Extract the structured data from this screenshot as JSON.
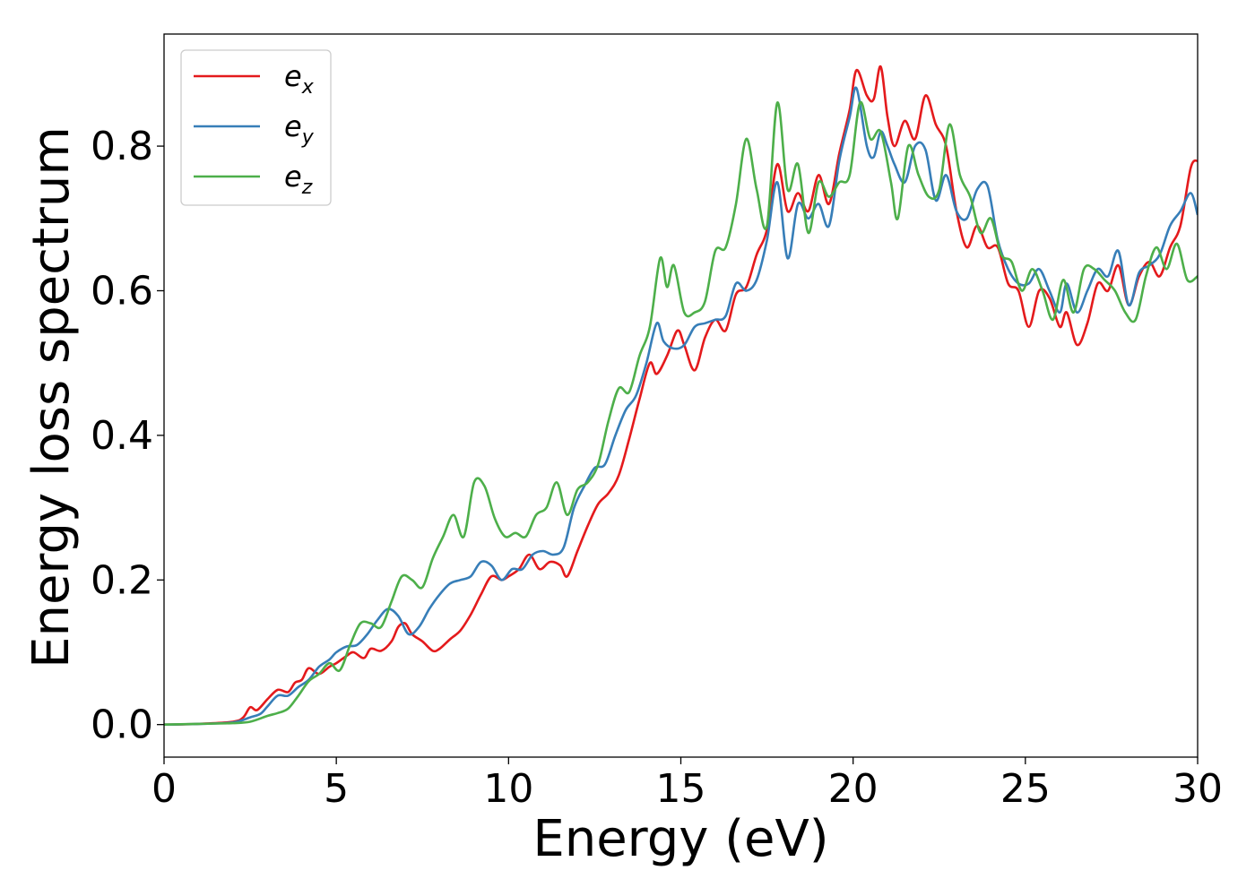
{
  "chart_data": {
    "type": "line",
    "title": "",
    "xlabel": "Energy (eV)",
    "ylabel": "Energy loss spectrum",
    "xlim": [
      0,
      30
    ],
    "ylim": [
      -0.045,
      0.955
    ],
    "xticks": [
      0,
      5,
      10,
      15,
      20,
      25,
      30
    ],
    "yticks": [
      0.0,
      0.2,
      0.4,
      0.6,
      0.8
    ],
    "xtick_labels": [
      "0",
      "5",
      "10",
      "15",
      "20",
      "25",
      "30"
    ],
    "ytick_labels": [
      "0.0",
      "0.2",
      "0.4",
      "0.6",
      "0.8"
    ],
    "grid": false,
    "legend_position": "top-left",
    "series": [
      {
        "name": "e_x",
        "legend_base": "e",
        "legend_sub": "x",
        "color": "#e41a1c",
        "points": [
          [
            0,
            0
          ],
          [
            1,
            0.001
          ],
          [
            2,
            0.004
          ],
          [
            2.3,
            0.01
          ],
          [
            2.5,
            0.024
          ],
          [
            2.7,
            0.02
          ],
          [
            3,
            0.035
          ],
          [
            3.3,
            0.048
          ],
          [
            3.6,
            0.045
          ],
          [
            3.8,
            0.058
          ],
          [
            4,
            0.062
          ],
          [
            4.2,
            0.078
          ],
          [
            4.5,
            0.07
          ],
          [
            4.8,
            0.08
          ],
          [
            5,
            0.085
          ],
          [
            5.3,
            0.095
          ],
          [
            5.5,
            0.1
          ],
          [
            5.8,
            0.092
          ],
          [
            6,
            0.105
          ],
          [
            6.3,
            0.102
          ],
          [
            6.6,
            0.115
          ],
          [
            6.8,
            0.135
          ],
          [
            7,
            0.14
          ],
          [
            7.2,
            0.125
          ],
          [
            7.5,
            0.115
          ],
          [
            7.8,
            0.102
          ],
          [
            8,
            0.105
          ],
          [
            8.3,
            0.118
          ],
          [
            8.6,
            0.13
          ],
          [
            8.9,
            0.152
          ],
          [
            9.2,
            0.18
          ],
          [
            9.5,
            0.205
          ],
          [
            9.8,
            0.2
          ],
          [
            10,
            0.205
          ],
          [
            10.3,
            0.215
          ],
          [
            10.6,
            0.235
          ],
          [
            10.9,
            0.215
          ],
          [
            11.2,
            0.225
          ],
          [
            11.5,
            0.22
          ],
          [
            11.7,
            0.205
          ],
          [
            12,
            0.24
          ],
          [
            12.3,
            0.275
          ],
          [
            12.6,
            0.305
          ],
          [
            12.9,
            0.32
          ],
          [
            13.2,
            0.345
          ],
          [
            13.5,
            0.395
          ],
          [
            13.8,
            0.45
          ],
          [
            14.1,
            0.5
          ],
          [
            14.3,
            0.485
          ],
          [
            14.6,
            0.51
          ],
          [
            14.9,
            0.545
          ],
          [
            15.1,
            0.525
          ],
          [
            15.4,
            0.49
          ],
          [
            15.7,
            0.535
          ],
          [
            16,
            0.56
          ],
          [
            16.3,
            0.545
          ],
          [
            16.6,
            0.595
          ],
          [
            16.9,
            0.605
          ],
          [
            17.2,
            0.65
          ],
          [
            17.5,
            0.685
          ],
          [
            17.8,
            0.775
          ],
          [
            18.1,
            0.71
          ],
          [
            18.4,
            0.735
          ],
          [
            18.7,
            0.71
          ],
          [
            19,
            0.76
          ],
          [
            19.3,
            0.72
          ],
          [
            19.6,
            0.79
          ],
          [
            19.9,
            0.85
          ],
          [
            20.1,
            0.905
          ],
          [
            20.4,
            0.87
          ],
          [
            20.6,
            0.865
          ],
          [
            20.8,
            0.91
          ],
          [
            21,
            0.84
          ],
          [
            21.2,
            0.8
          ],
          [
            21.5,
            0.835
          ],
          [
            21.8,
            0.81
          ],
          [
            22.1,
            0.87
          ],
          [
            22.4,
            0.83
          ],
          [
            22.7,
            0.8
          ],
          [
            23,
            0.71
          ],
          [
            23.3,
            0.66
          ],
          [
            23.6,
            0.69
          ],
          [
            23.9,
            0.66
          ],
          [
            24.2,
            0.66
          ],
          [
            24.5,
            0.61
          ],
          [
            24.8,
            0.6
          ],
          [
            25.1,
            0.55
          ],
          [
            25.4,
            0.6
          ],
          [
            25.7,
            0.59
          ],
          [
            26,
            0.55
          ],
          [
            26.2,
            0.57
          ],
          [
            26.5,
            0.525
          ],
          [
            26.8,
            0.555
          ],
          [
            27.1,
            0.61
          ],
          [
            27.4,
            0.6
          ],
          [
            27.7,
            0.635
          ],
          [
            28,
            0.58
          ],
          [
            28.3,
            0.62
          ],
          [
            28.6,
            0.64
          ],
          [
            28.9,
            0.62
          ],
          [
            29.2,
            0.66
          ],
          [
            29.5,
            0.69
          ],
          [
            29.8,
            0.77
          ],
          [
            30,
            0.78
          ]
        ]
      },
      {
        "name": "e_y",
        "legend_base": "e",
        "legend_sub": "y",
        "color": "#377eb8",
        "points": [
          [
            0,
            0
          ],
          [
            1,
            0.001
          ],
          [
            2,
            0.003
          ],
          [
            2.5,
            0.01
          ],
          [
            2.8,
            0.015
          ],
          [
            3,
            0.025
          ],
          [
            3.3,
            0.04
          ],
          [
            3.6,
            0.04
          ],
          [
            3.9,
            0.052
          ],
          [
            4.2,
            0.062
          ],
          [
            4.5,
            0.08
          ],
          [
            4.8,
            0.09
          ],
          [
            5,
            0.1
          ],
          [
            5.3,
            0.108
          ],
          [
            5.6,
            0.11
          ],
          [
            5.9,
            0.125
          ],
          [
            6.2,
            0.145
          ],
          [
            6.5,
            0.16
          ],
          [
            6.8,
            0.15
          ],
          [
            7.1,
            0.125
          ],
          [
            7.4,
            0.135
          ],
          [
            7.7,
            0.16
          ],
          [
            8,
            0.18
          ],
          [
            8.3,
            0.195
          ],
          [
            8.6,
            0.2
          ],
          [
            8.9,
            0.205
          ],
          [
            9.2,
            0.225
          ],
          [
            9.5,
            0.22
          ],
          [
            9.8,
            0.2
          ],
          [
            10.1,
            0.215
          ],
          [
            10.4,
            0.215
          ],
          [
            10.7,
            0.235
          ],
          [
            11,
            0.24
          ],
          [
            11.3,
            0.235
          ],
          [
            11.6,
            0.245
          ],
          [
            11.9,
            0.3
          ],
          [
            12.2,
            0.33
          ],
          [
            12.5,
            0.355
          ],
          [
            12.8,
            0.36
          ],
          [
            13.1,
            0.4
          ],
          [
            13.4,
            0.435
          ],
          [
            13.7,
            0.455
          ],
          [
            14,
            0.5
          ],
          [
            14.3,
            0.555
          ],
          [
            14.5,
            0.53
          ],
          [
            14.8,
            0.52
          ],
          [
            15.1,
            0.525
          ],
          [
            15.4,
            0.55
          ],
          [
            15.7,
            0.555
          ],
          [
            16,
            0.56
          ],
          [
            16.3,
            0.565
          ],
          [
            16.6,
            0.61
          ],
          [
            16.9,
            0.6
          ],
          [
            17.2,
            0.615
          ],
          [
            17.5,
            0.67
          ],
          [
            17.8,
            0.75
          ],
          [
            18.1,
            0.645
          ],
          [
            18.4,
            0.72
          ],
          [
            18.7,
            0.7
          ],
          [
            19,
            0.72
          ],
          [
            19.3,
            0.69
          ],
          [
            19.6,
            0.78
          ],
          [
            19.9,
            0.84
          ],
          [
            20.1,
            0.88
          ],
          [
            20.4,
            0.8
          ],
          [
            20.6,
            0.785
          ],
          [
            20.8,
            0.82
          ],
          [
            21,
            0.8
          ],
          [
            21.2,
            0.775
          ],
          [
            21.5,
            0.75
          ],
          [
            21.8,
            0.8
          ],
          [
            22.1,
            0.795
          ],
          [
            22.4,
            0.725
          ],
          [
            22.7,
            0.76
          ],
          [
            23,
            0.71
          ],
          [
            23.3,
            0.7
          ],
          [
            23.6,
            0.74
          ],
          [
            23.9,
            0.745
          ],
          [
            24.2,
            0.67
          ],
          [
            24.5,
            0.63
          ],
          [
            24.8,
            0.61
          ],
          [
            25.1,
            0.61
          ],
          [
            25.4,
            0.63
          ],
          [
            25.7,
            0.6
          ],
          [
            26,
            0.57
          ],
          [
            26.2,
            0.61
          ],
          [
            26.5,
            0.57
          ],
          [
            26.8,
            0.6
          ],
          [
            27.1,
            0.63
          ],
          [
            27.4,
            0.62
          ],
          [
            27.7,
            0.655
          ],
          [
            28,
            0.58
          ],
          [
            28.3,
            0.625
          ],
          [
            28.6,
            0.635
          ],
          [
            28.9,
            0.65
          ],
          [
            29.2,
            0.69
          ],
          [
            29.5,
            0.71
          ],
          [
            29.8,
            0.735
          ],
          [
            30,
            0.705
          ]
        ]
      },
      {
        "name": "e_z",
        "legend_base": "e",
        "legend_sub": "z",
        "color": "#4daf4a",
        "points": [
          [
            0,
            0
          ],
          [
            1,
            0.001
          ],
          [
            2,
            0.002
          ],
          [
            2.5,
            0.004
          ],
          [
            3,
            0.012
          ],
          [
            3.3,
            0.016
          ],
          [
            3.6,
            0.022
          ],
          [
            3.9,
            0.04
          ],
          [
            4.2,
            0.06
          ],
          [
            4.5,
            0.07
          ],
          [
            4.8,
            0.085
          ],
          [
            5.1,
            0.075
          ],
          [
            5.4,
            0.11
          ],
          [
            5.7,
            0.14
          ],
          [
            6,
            0.14
          ],
          [
            6.3,
            0.135
          ],
          [
            6.6,
            0.17
          ],
          [
            6.9,
            0.205
          ],
          [
            7.2,
            0.2
          ],
          [
            7.5,
            0.19
          ],
          [
            7.8,
            0.23
          ],
          [
            8.1,
            0.26
          ],
          [
            8.4,
            0.29
          ],
          [
            8.7,
            0.26
          ],
          [
            9,
            0.335
          ],
          [
            9.3,
            0.33
          ],
          [
            9.6,
            0.285
          ],
          [
            9.9,
            0.26
          ],
          [
            10.2,
            0.265
          ],
          [
            10.5,
            0.26
          ],
          [
            10.8,
            0.29
          ],
          [
            11.1,
            0.3
          ],
          [
            11.4,
            0.335
          ],
          [
            11.7,
            0.29
          ],
          [
            12,
            0.325
          ],
          [
            12.3,
            0.335
          ],
          [
            12.6,
            0.36
          ],
          [
            12.9,
            0.42
          ],
          [
            13.2,
            0.465
          ],
          [
            13.5,
            0.46
          ],
          [
            13.8,
            0.51
          ],
          [
            14.1,
            0.55
          ],
          [
            14.4,
            0.645
          ],
          [
            14.6,
            0.605
          ],
          [
            14.8,
            0.635
          ],
          [
            15.1,
            0.57
          ],
          [
            15.4,
            0.57
          ],
          [
            15.7,
            0.585
          ],
          [
            16,
            0.655
          ],
          [
            16.3,
            0.66
          ],
          [
            16.6,
            0.72
          ],
          [
            16.9,
            0.81
          ],
          [
            17.2,
            0.74
          ],
          [
            17.5,
            0.69
          ],
          [
            17.8,
            0.86
          ],
          [
            18.1,
            0.74
          ],
          [
            18.4,
            0.775
          ],
          [
            18.7,
            0.68
          ],
          [
            19,
            0.75
          ],
          [
            19.3,
            0.73
          ],
          [
            19.6,
            0.75
          ],
          [
            19.9,
            0.76
          ],
          [
            20.2,
            0.86
          ],
          [
            20.5,
            0.81
          ],
          [
            20.8,
            0.82
          ],
          [
            21.1,
            0.75
          ],
          [
            21.3,
            0.7
          ],
          [
            21.6,
            0.8
          ],
          [
            21.9,
            0.76
          ],
          [
            22.2,
            0.73
          ],
          [
            22.5,
            0.74
          ],
          [
            22.8,
            0.83
          ],
          [
            23.1,
            0.76
          ],
          [
            23.4,
            0.73
          ],
          [
            23.7,
            0.68
          ],
          [
            24,
            0.7
          ],
          [
            24.3,
            0.65
          ],
          [
            24.6,
            0.64
          ],
          [
            24.9,
            0.6
          ],
          [
            25.2,
            0.63
          ],
          [
            25.5,
            0.6
          ],
          [
            25.8,
            0.56
          ],
          [
            26.1,
            0.615
          ],
          [
            26.4,
            0.57
          ],
          [
            26.7,
            0.63
          ],
          [
            27,
            0.63
          ],
          [
            27.3,
            0.615
          ],
          [
            27.6,
            0.6
          ],
          [
            27.9,
            0.57
          ],
          [
            28.2,
            0.56
          ],
          [
            28.5,
            0.62
          ],
          [
            28.8,
            0.66
          ],
          [
            29.1,
            0.63
          ],
          [
            29.4,
            0.665
          ],
          [
            29.7,
            0.615
          ],
          [
            30,
            0.62
          ]
        ]
      }
    ]
  }
}
